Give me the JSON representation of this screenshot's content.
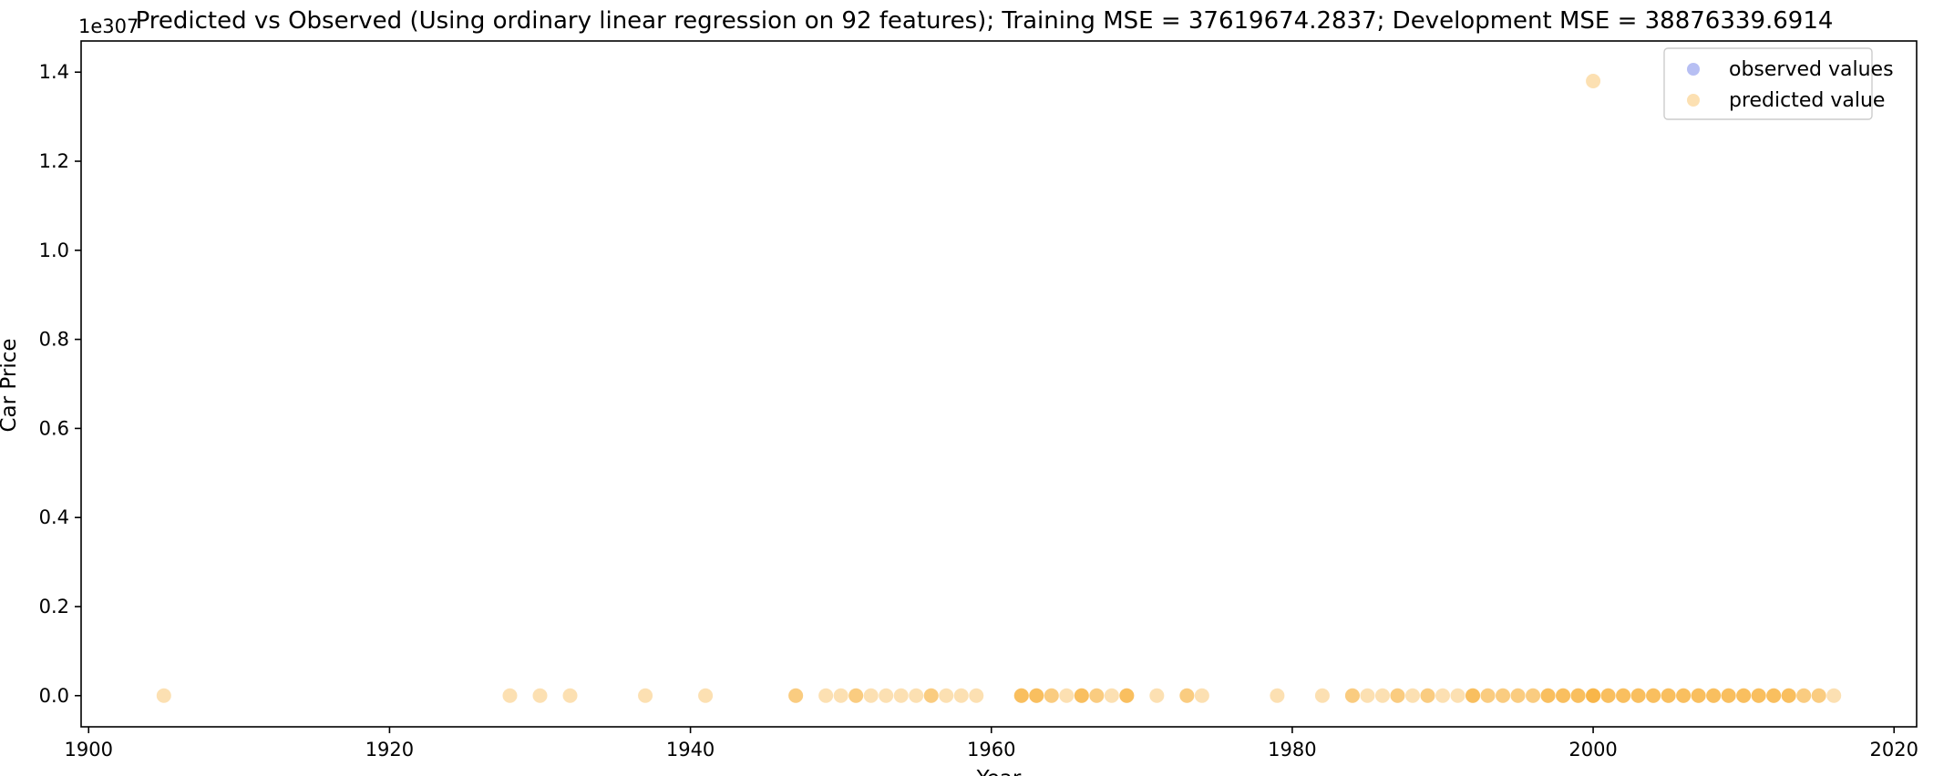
{
  "chart_data": {
    "type": "scatter",
    "title": "Predicted vs Observed (Using ordinary linear regression on 92 features); Training MSE = 37619674.2837; Development MSE = 38876339.6914",
    "xlabel": "Year",
    "ylabel": "Car Price",
    "y_offset_label": "1e307",
    "xlim": [
      1899.5,
      2021.5
    ],
    "ylim": [
      -0.07,
      1.47
    ],
    "y_scale_factor": "1e307",
    "x_ticks": [
      1900,
      1920,
      1940,
      1960,
      1980,
      2000,
      2020
    ],
    "x_tick_labels": [
      "1900",
      "1920",
      "1940",
      "1960",
      "1980",
      "2000",
      "2020"
    ],
    "y_ticks": [
      0.0,
      0.2,
      0.4,
      0.6,
      0.8,
      1.0,
      1.2,
      1.4
    ],
    "y_tick_labels": [
      "0.0",
      "0.2",
      "0.4",
      "0.6",
      "0.8",
      "1.0",
      "1.2",
      "1.4"
    ],
    "grid": false,
    "legend_position": "upper right",
    "series": [
      {
        "name": "observed values",
        "color": "#4c5fe0",
        "alpha": 0.4,
        "points": []
      },
      {
        "name": "predicted value",
        "color": "#f5a623",
        "alpha": 0.35,
        "points": [
          [
            1905,
            0
          ],
          [
            1928,
            0
          ],
          [
            1930,
            0
          ],
          [
            1932,
            0
          ],
          [
            1937,
            0
          ],
          [
            1941,
            0
          ],
          [
            1947,
            0
          ],
          [
            1947,
            0
          ],
          [
            1949,
            0
          ],
          [
            1950,
            0
          ],
          [
            1951,
            0
          ],
          [
            1951,
            0
          ],
          [
            1952,
            0
          ],
          [
            1953,
            0
          ],
          [
            1954,
            0
          ],
          [
            1955,
            0
          ],
          [
            1956,
            0
          ],
          [
            1956,
            0
          ],
          [
            1957,
            0
          ],
          [
            1958,
            0
          ],
          [
            1959,
            0
          ],
          [
            1962,
            0
          ],
          [
            1962,
            0
          ],
          [
            1962,
            0
          ],
          [
            1963,
            0
          ],
          [
            1963,
            0
          ],
          [
            1963,
            0
          ],
          [
            1964,
            0
          ],
          [
            1964,
            0
          ],
          [
            1965,
            0
          ],
          [
            1966,
            0
          ],
          [
            1966,
            0
          ],
          [
            1966,
            0
          ],
          [
            1967,
            0
          ],
          [
            1967,
            0
          ],
          [
            1968,
            0
          ],
          [
            1969,
            0
          ],
          [
            1969,
            0
          ],
          [
            1969,
            0
          ],
          [
            1971,
            0
          ],
          [
            1973,
            0
          ],
          [
            1973,
            0
          ],
          [
            1974,
            0
          ],
          [
            1979,
            0
          ],
          [
            1982,
            0
          ],
          [
            1984,
            0
          ],
          [
            1984,
            0
          ],
          [
            1985,
            0
          ],
          [
            1986,
            0
          ],
          [
            1987,
            0
          ],
          [
            1987,
            0
          ],
          [
            1988,
            0
          ],
          [
            1989,
            0
          ],
          [
            1989,
            0
          ],
          [
            1990,
            0
          ],
          [
            1991,
            0
          ],
          [
            1992,
            0
          ],
          [
            1992,
            0
          ],
          [
            1992,
            0
          ],
          [
            1993,
            0
          ],
          [
            1993,
            0
          ],
          [
            1994,
            0
          ],
          [
            1994,
            0
          ],
          [
            1995,
            0
          ],
          [
            1995,
            0
          ],
          [
            1996,
            0
          ],
          [
            1996,
            0
          ],
          [
            1997,
            0
          ],
          [
            1997,
            0
          ],
          [
            1997,
            0
          ],
          [
            1998,
            0
          ],
          [
            1998,
            0
          ],
          [
            1998,
            0
          ],
          [
            1999,
            0
          ],
          [
            1999,
            0
          ],
          [
            1999,
            0
          ],
          [
            2000,
            0
          ],
          [
            2000,
            0
          ],
          [
            2000,
            0
          ],
          [
            2000,
            0
          ],
          [
            2001,
            0
          ],
          [
            2001,
            0
          ],
          [
            2001,
            0
          ],
          [
            2002,
            0
          ],
          [
            2002,
            0
          ],
          [
            2002,
            0
          ],
          [
            2003,
            0
          ],
          [
            2003,
            0
          ],
          [
            2003,
            0
          ],
          [
            2004,
            0
          ],
          [
            2004,
            0
          ],
          [
            2004,
            0
          ],
          [
            2005,
            0
          ],
          [
            2005,
            0
          ],
          [
            2005,
            0
          ],
          [
            2006,
            0
          ],
          [
            2006,
            0
          ],
          [
            2006,
            0
          ],
          [
            2007,
            0
          ],
          [
            2007,
            0
          ],
          [
            2007,
            0
          ],
          [
            2008,
            0
          ],
          [
            2008,
            0
          ],
          [
            2008,
            0
          ],
          [
            2009,
            0
          ],
          [
            2009,
            0
          ],
          [
            2009,
            0
          ],
          [
            2010,
            0
          ],
          [
            2010,
            0
          ],
          [
            2010,
            0
          ],
          [
            2011,
            0
          ],
          [
            2011,
            0
          ],
          [
            2011,
            0
          ],
          [
            2012,
            0
          ],
          [
            2012,
            0
          ],
          [
            2012,
            0
          ],
          [
            2013,
            0
          ],
          [
            2013,
            0
          ],
          [
            2013,
            0
          ],
          [
            2014,
            0
          ],
          [
            2014,
            0
          ],
          [
            2015,
            0
          ],
          [
            2015,
            0
          ],
          [
            2016,
            0
          ],
          [
            2000,
            1.38
          ]
        ]
      }
    ]
  }
}
